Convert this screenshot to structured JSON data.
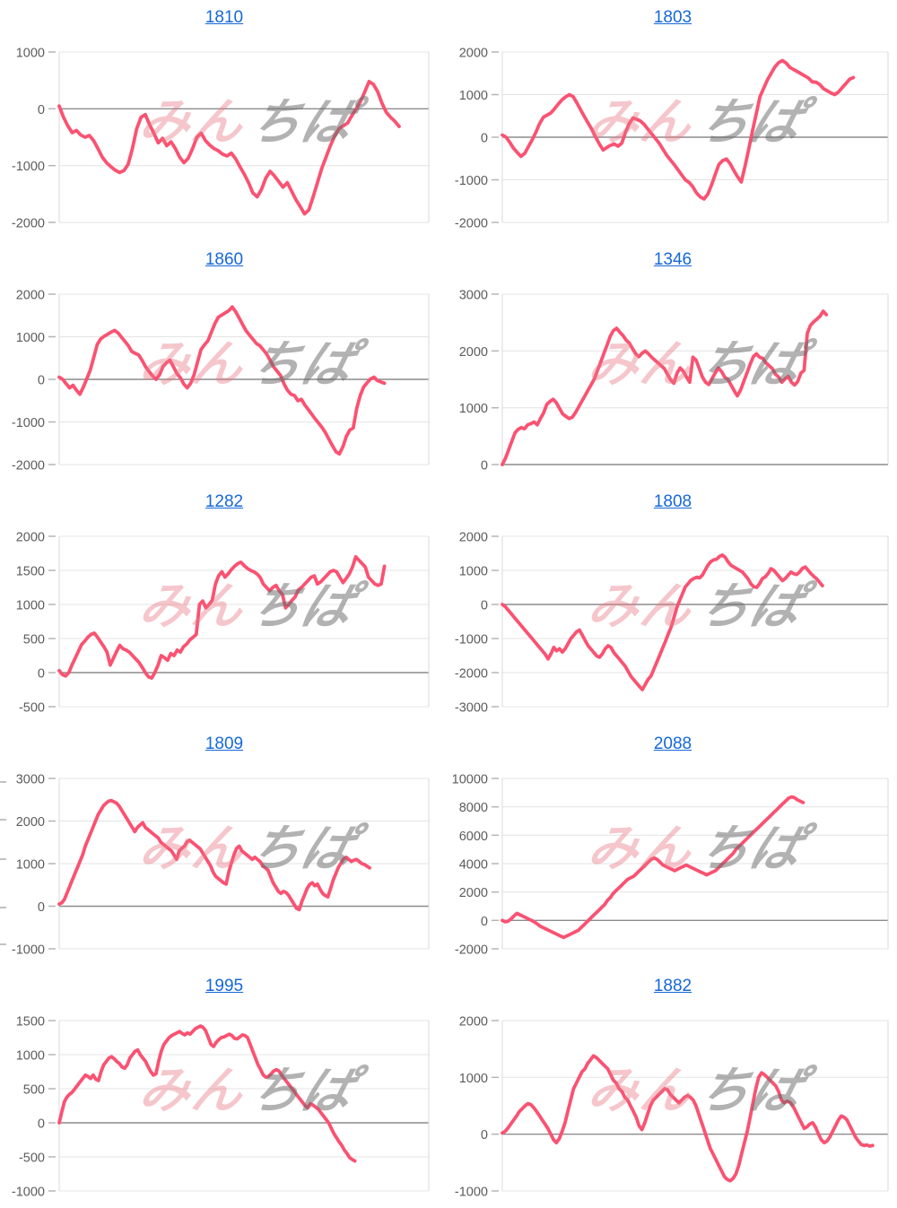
{
  "watermark": {
    "pink_text": "みん",
    "gray_text": "ちぱ",
    "pink_color": "rgba(232,118,131,0.42)",
    "gray_color": "rgba(108,108,108,0.52)"
  },
  "colors": {
    "line": "#fa5272",
    "title_link": "#1668d9",
    "grid": "#e4e4e4",
    "zero_line": "#8c8c8c",
    "axis_border": "#d8d8d8",
    "tick_label": "#5c5c5c",
    "tick_dash": "#b5b5b5"
  },
  "edge_ticks_y": [
    871,
    913,
    957,
    1011,
    1052
  ],
  "chart_data": [
    {
      "type": "line",
      "title": "1810",
      "ylim": [
        -2000,
        1000
      ],
      "yticks": [
        1000,
        0,
        -1000,
        -2000
      ],
      "x_end_frac": 0.92,
      "grid": true,
      "values": [
        50,
        -150,
        -300,
        -420,
        -380,
        -460,
        -500,
        -470,
        -560,
        -700,
        -850,
        -950,
        -1020,
        -1080,
        -1120,
        -1090,
        -980,
        -700,
        -350,
        -150,
        -100,
        -280,
        -430,
        -600,
        -520,
        -650,
        -580,
        -700,
        -850,
        -950,
        -870,
        -700,
        -500,
        -430,
        -560,
        -640,
        -700,
        -740,
        -800,
        -830,
        -780,
        -880,
        -1020,
        -1150,
        -1300,
        -1480,
        -1550,
        -1420,
        -1220,
        -1100,
        -1180,
        -1280,
        -1380,
        -1300,
        -1450,
        -1600,
        -1720,
        -1850,
        -1780,
        -1550,
        -1300,
        -1050,
        -850,
        -650,
        -480,
        -350,
        -300,
        -250,
        -120,
        0,
        130,
        300,
        480,
        430,
        300,
        100,
        -60,
        -150,
        -220,
        -310
      ]
    },
    {
      "type": "line",
      "title": "1803",
      "ylim": [
        -2000,
        2000
      ],
      "yticks": [
        2000,
        1000,
        0,
        -1000,
        -2000
      ],
      "x_end_frac": 0.91,
      "grid": true,
      "values": [
        50,
        0,
        -120,
        -260,
        -360,
        -450,
        -380,
        -220,
        -60,
        120,
        320,
        470,
        520,
        570,
        670,
        780,
        880,
        950,
        1000,
        950,
        800,
        640,
        480,
        330,
        180,
        0,
        -160,
        -300,
        -240,
        -190,
        -160,
        -210,
        -140,
        120,
        320,
        450,
        420,
        380,
        300,
        190,
        80,
        -30,
        -140,
        -280,
        -420,
        -530,
        -640,
        -760,
        -880,
        -1000,
        -1060,
        -1160,
        -1310,
        -1400,
        -1450,
        -1340,
        -1130,
        -880,
        -640,
        -550,
        -510,
        -620,
        -780,
        -930,
        -1050,
        -680,
        -280,
        150,
        550,
        950,
        1150,
        1350,
        1500,
        1650,
        1750,
        1800,
        1740,
        1640,
        1590,
        1540,
        1490,
        1440,
        1390,
        1300,
        1290,
        1240,
        1140,
        1090,
        1040,
        1000,
        1060,
        1160,
        1260,
        1360,
        1400
      ]
    },
    {
      "type": "line",
      "title": "1860",
      "ylim": [
        -2000,
        2000
      ],
      "yticks": [
        2000,
        1000,
        0,
        -1000,
        -2000
      ],
      "x_end_frac": 0.88,
      "grid": true,
      "values": [
        50,
        0,
        -100,
        -200,
        -140,
        -260,
        -350,
        -180,
        20,
        220,
        520,
        820,
        950,
        1010,
        1060,
        1110,
        1150,
        1090,
        990,
        890,
        790,
        650,
        610,
        570,
        440,
        290,
        180,
        80,
        0,
        110,
        300,
        390,
        450,
        300,
        140,
        40,
        -110,
        -200,
        -90,
        110,
        410,
        700,
        810,
        910,
        1110,
        1310,
        1460,
        1510,
        1560,
        1610,
        1700,
        1590,
        1440,
        1290,
        1140,
        1040,
        940,
        840,
        790,
        690,
        590,
        440,
        290,
        190,
        90,
        -110,
        -260,
        -350,
        -380,
        -500,
        -470,
        -600,
        -710,
        -820,
        -930,
        -1030,
        -1130,
        -1260,
        -1410,
        -1560,
        -1700,
        -1750,
        -1580,
        -1340,
        -1190,
        -1140,
        -680,
        -380,
        -180,
        -80,
        10,
        50,
        -30,
        -60,
        -90
      ]
    },
    {
      "type": "line",
      "title": "1346",
      "ylim": [
        0,
        3000
      ],
      "yticks": [
        3000,
        2000,
        1000,
        0
      ],
      "x_end_frac": 0.84,
      "grid": true,
      "values": [
        0,
        110,
        260,
        410,
        560,
        620,
        650,
        630,
        700,
        720,
        750,
        700,
        810,
        910,
        1060,
        1110,
        1150,
        1090,
        990,
        890,
        850,
        810,
        830,
        910,
        1010,
        1110,
        1210,
        1310,
        1410,
        1510,
        1660,
        1810,
        1960,
        2110,
        2260,
        2360,
        2400,
        2330,
        2270,
        2190,
        2140,
        2040,
        1950,
        1900,
        1960,
        2000,
        1950,
        1890,
        1840,
        1790,
        1740,
        1690,
        1590,
        1490,
        1430,
        1610,
        1700,
        1640,
        1540,
        1450,
        1890,
        1840,
        1690,
        1540,
        1450,
        1410,
        1510,
        1610,
        1700,
        1640,
        1540,
        1500,
        1400,
        1300,
        1210,
        1310,
        1460,
        1610,
        1760,
        1900,
        1950,
        1890,
        1870,
        1790,
        1740,
        1690,
        1590,
        1540,
        1450,
        1510,
        1550,
        1450,
        1400,
        1460,
        1610,
        1660,
        2310,
        2450,
        2510,
        2560,
        2610,
        2700,
        2640
      ]
    },
    {
      "type": "line",
      "title": "1282",
      "ylim": [
        -500,
        2000
      ],
      "yticks": [
        2000,
        1500,
        1000,
        500,
        0,
        -500
      ],
      "x_end_frac": 0.88,
      "grid": true,
      "values": [
        30,
        -30,
        -50,
        0,
        110,
        210,
        310,
        410,
        460,
        520,
        560,
        580,
        520,
        450,
        380,
        300,
        110,
        210,
        310,
        400,
        350,
        330,
        300,
        250,
        200,
        150,
        80,
        0,
        -60,
        -80,
        0,
        110,
        250,
        220,
        180,
        280,
        250,
        330,
        300,
        380,
        420,
        480,
        520,
        560,
        1000,
        1050,
        950,
        1000,
        1060,
        1300,
        1420,
        1480,
        1400,
        1450,
        1510,
        1560,
        1600,
        1620,
        1570,
        1530,
        1500,
        1480,
        1450,
        1400,
        1300,
        1250,
        1200,
        1250,
        1280,
        1200,
        1150,
        950,
        1000,
        1060,
        1110,
        1210,
        1250,
        1300,
        1350,
        1400,
        1420,
        1300,
        1330,
        1380,
        1430,
        1480,
        1500,
        1480,
        1400,
        1320,
        1380,
        1450,
        1550,
        1700,
        1650,
        1600,
        1550,
        1400,
        1350,
        1300,
        1280,
        1300,
        1560
      ]
    },
    {
      "type": "line",
      "title": "1808",
      "ylim": [
        -3000,
        2000
      ],
      "yticks": [
        2000,
        1000,
        0,
        -1000,
        -2000,
        -3000
      ],
      "x_end_frac": 0.83,
      "grid": true,
      "values": [
        0,
        -60,
        -160,
        -260,
        -360,
        -460,
        -560,
        -660,
        -760,
        -860,
        -960,
        -1060,
        -1160,
        -1260,
        -1360,
        -1460,
        -1600,
        -1450,
        -1260,
        -1360,
        -1300,
        -1400,
        -1300,
        -1150,
        -1000,
        -900,
        -800,
        -750,
        -900,
        -1060,
        -1210,
        -1310,
        -1410,
        -1510,
        -1550,
        -1450,
        -1300,
        -1210,
        -1260,
        -1410,
        -1510,
        -1610,
        -1710,
        -1810,
        -1960,
        -2110,
        -2210,
        -2310,
        -2410,
        -2500,
        -2350,
        -2200,
        -2100,
        -1900,
        -1700,
        -1500,
        -1300,
        -1100,
        -880,
        -680,
        -400,
        -100,
        110,
        310,
        510,
        610,
        710,
        760,
        800,
        780,
        860,
        1010,
        1160,
        1260,
        1310,
        1330,
        1410,
        1450,
        1380,
        1250,
        1150,
        1100,
        1050,
        1000,
        950,
        850,
        750,
        600,
        520,
        500,
        610,
        760,
        810,
        910,
        1050,
        1000,
        900,
        800,
        700,
        760,
        860,
        950,
        900,
        880,
        950,
        1060,
        1100,
        1000,
        900,
        820,
        750,
        650,
        550
      ]
    },
    {
      "type": "line",
      "title": "1809",
      "ylim": [
        -1000,
        3000
      ],
      "yticks": [
        3000,
        2000,
        1000,
        0,
        -1000
      ],
      "x_end_frac": 0.84,
      "grid": true,
      "values": [
        50,
        80,
        160,
        310,
        460,
        610,
        760,
        910,
        1060,
        1210,
        1410,
        1560,
        1710,
        1860,
        2010,
        2160,
        2260,
        2360,
        2420,
        2470,
        2480,
        2450,
        2420,
        2350,
        2250,
        2150,
        2050,
        1950,
        1850,
        1750,
        1850,
        1910,
        1960,
        1850,
        1800,
        1750,
        1700,
        1650,
        1600,
        1500,
        1450,
        1400,
        1350,
        1300,
        1200,
        1100,
        1300,
        1360,
        1410,
        1510,
        1550,
        1500,
        1450,
        1400,
        1350,
        1250,
        1150,
        1050,
        950,
        800,
        700,
        650,
        600,
        550,
        520,
        800,
        1010,
        1210,
        1360,
        1410,
        1300,
        1250,
        1200,
        1150,
        1100,
        1150,
        1100,
        1050,
        950,
        900,
        850,
        700,
        550,
        450,
        350,
        300,
        350,
        320,
        250,
        150,
        50,
        -50,
        -80,
        110,
        260,
        410,
        510,
        550,
        480,
        520,
        400,
        300,
        250,
        220,
        410,
        610,
        760,
        910,
        1010,
        1110,
        1150,
        1100,
        1050,
        1080,
        1100,
        1050,
        1000,
        980,
        940,
        900
      ]
    },
    {
      "type": "line",
      "title": "2088",
      "ylim": [
        -2000,
        10000
      ],
      "yticks": [
        10000,
        8000,
        6000,
        4000,
        2000,
        0,
        -2000
      ],
      "x_end_frac": 0.78,
      "grid": true,
      "values": [
        0,
        -100,
        -50,
        110,
        310,
        500,
        400,
        300,
        200,
        100,
        0,
        -110,
        -260,
        -410,
        -510,
        -610,
        -710,
        -810,
        -910,
        -1010,
        -1110,
        -1200,
        -1100,
        -1000,
        -900,
        -800,
        -700,
        -500,
        -300,
        -100,
        110,
        310,
        510,
        710,
        910,
        1110,
        1410,
        1610,
        1910,
        2110,
        2310,
        2510,
        2710,
        2910,
        3010,
        3110,
        3310,
        3510,
        3710,
        3910,
        4110,
        4310,
        4400,
        4300,
        4100,
        3900,
        3800,
        3700,
        3600,
        3500,
        3610,
        3710,
        3810,
        3900,
        3800,
        3700,
        3600,
        3500,
        3400,
        3310,
        3210,
        3310,
        3410,
        3510,
        3710,
        3910,
        4110,
        4310,
        4510,
        4710,
        5010,
        5210,
        5410,
        5610,
        5810,
        6010,
        6210,
        6410,
        6610,
        6810,
        7010,
        7210,
        7410,
        7610,
        7810,
        8010,
        8210,
        8410,
        8610,
        8700,
        8650,
        8500,
        8400,
        8300
      ]
    },
    {
      "type": "line",
      "title": "1995",
      "ylim": [
        -1000,
        1500
      ],
      "yticks": [
        1500,
        1000,
        500,
        0,
        -500,
        -1000
      ],
      "x_end_frac": 0.8,
      "grid": true,
      "values": [
        0,
        160,
        310,
        380,
        420,
        450,
        500,
        550,
        600,
        650,
        700,
        680,
        650,
        700,
        640,
        620,
        750,
        850,
        900,
        950,
        970,
        940,
        900,
        870,
        820,
        800,
        850,
        950,
        1000,
        1050,
        1070,
        1000,
        950,
        900,
        820,
        750,
        700,
        720,
        900,
        1050,
        1150,
        1200,
        1250,
        1280,
        1300,
        1320,
        1340,
        1310,
        1290,
        1320,
        1300,
        1340,
        1380,
        1400,
        1420,
        1400,
        1350,
        1250,
        1150,
        1120,
        1180,
        1220,
        1250,
        1260,
        1280,
        1300,
        1280,
        1240,
        1230,
        1260,
        1290,
        1280,
        1250,
        1150,
        1050,
        950,
        850,
        780,
        700,
        670,
        680,
        720,
        760,
        780,
        760,
        700,
        650,
        600,
        550,
        500,
        450,
        400,
        350,
        300,
        250,
        220,
        280,
        260,
        230,
        200,
        150,
        100,
        50,
        0,
        -80,
        -160,
        -220,
        -280,
        -330,
        -400,
        -450,
        -510,
        -540,
        -560
      ]
    },
    {
      "type": "line",
      "title": "1882",
      "ylim": [
        -1000,
        2000
      ],
      "yticks": [
        2000,
        1000,
        0,
        -1000
      ],
      "x_end_frac": 0.96,
      "grid": true,
      "values": [
        20,
        50,
        110,
        180,
        250,
        320,
        400,
        450,
        500,
        540,
        520,
        470,
        400,
        330,
        250,
        180,
        100,
        0,
        -100,
        -150,
        -80,
        50,
        200,
        400,
        600,
        800,
        900,
        1000,
        1100,
        1150,
        1250,
        1310,
        1380,
        1350,
        1300,
        1250,
        1200,
        1150,
        1050,
        950,
        900,
        800,
        750,
        650,
        600,
        500,
        400,
        300,
        150,
        80,
        200,
        350,
        500,
        600,
        650,
        700,
        750,
        800,
        780,
        700,
        650,
        600,
        550,
        600,
        650,
        680,
        650,
        600,
        500,
        350,
        200,
        50,
        -100,
        -250,
        -350,
        -450,
        -550,
        -650,
        -750,
        -800,
        -820,
        -780,
        -700,
        -550,
        -350,
        -150,
        50,
        300,
        550,
        800,
        1000,
        1080,
        1050,
        1000,
        950,
        900,
        850,
        750,
        600,
        550,
        580,
        560,
        500,
        400,
        300,
        200,
        100,
        130,
        180,
        200,
        120,
        0,
        -100,
        -150,
        -120,
        -50,
        50,
        150,
        250,
        320,
        300,
        250,
        150,
        50,
        -50,
        -120,
        -180,
        -200,
        -190,
        -210,
        -200
      ]
    }
  ]
}
